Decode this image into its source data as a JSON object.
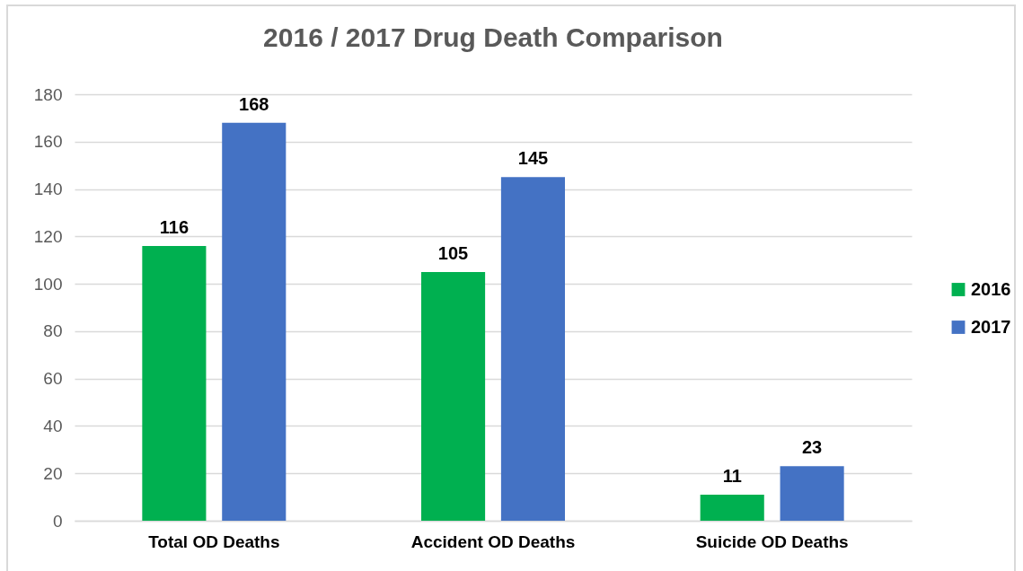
{
  "chart_data": {
    "type": "bar",
    "title": "2016 / 2017 Drug Death Comparison",
    "categories": [
      "Total OD Deaths",
      "Accident OD Deaths",
      "Suicide OD Deaths"
    ],
    "series": [
      {
        "name": "2016",
        "color": "#00b050",
        "values": [
          116,
          105,
          11
        ]
      },
      {
        "name": "2017",
        "color": "#4472c4",
        "values": [
          168,
          145,
          23
        ]
      }
    ],
    "ylim": [
      0,
      180
    ],
    "yticks": [
      0,
      20,
      40,
      60,
      80,
      100,
      120,
      140,
      160,
      180
    ],
    "grid": "y",
    "legend": "right",
    "data_labels": true
  }
}
